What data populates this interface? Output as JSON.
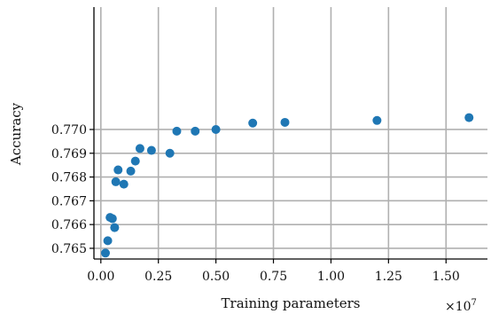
{
  "chart_data": {
    "type": "scatter",
    "title": "",
    "xlabel": "Training parameters",
    "ylabel": "Accuracy",
    "x_offset_label": "×10^7",
    "xlim": [
      -0.03,
      1.68
    ],
    "ylim": [
      0.76455,
      0.77515
    ],
    "x_ticks": [
      0.0,
      0.25,
      0.5,
      0.75,
      1.0,
      1.25,
      1.5
    ],
    "x_tick_labels": [
      "0.00",
      "0.25",
      "0.50",
      "0.75",
      "1.00",
      "1.25",
      "1.50"
    ],
    "y_ticks": [
      0.765,
      0.766,
      0.767,
      0.768,
      0.769,
      0.77
    ],
    "y_tick_labels": [
      "0.765",
      "0.766",
      "0.767",
      "0.768",
      "0.769",
      "0.770"
    ],
    "grid": true,
    "marker_color": "#1f77b4",
    "series": [
      {
        "x": [
          0.02,
          0.03,
          0.04,
          0.05,
          0.06,
          0.065,
          0.075,
          0.1,
          0.13,
          0.15,
          0.17,
          0.22,
          0.3,
          0.33,
          0.41,
          0.5,
          0.66,
          0.8,
          1.2,
          1.6
        ],
        "y": [
          0.7648,
          0.76532,
          0.7663,
          0.76625,
          0.76587,
          0.7678,
          0.7683,
          0.7677,
          0.76825,
          0.76867,
          0.7692,
          0.76912,
          0.769,
          0.76993,
          0.76993,
          0.77,
          0.77027,
          0.7703,
          0.77038,
          0.7705
        ]
      }
    ]
  }
}
